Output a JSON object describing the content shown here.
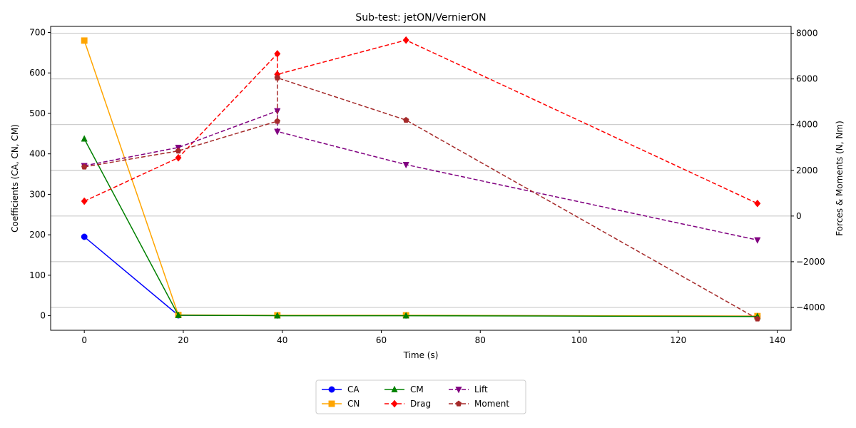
{
  "chart_data": {
    "type": "line",
    "title": "Sub-test: jetON/VernierON",
    "xlabel": "Time (s)",
    "ylabel_left": "Coefficients (CA, CN, CM)",
    "ylabel_right": "Forces & Moments (N, Nm)",
    "xlim": [
      -6.8,
      142.8
    ],
    "ylim_left": [
      -36,
      715
    ],
    "ylim_right": [
      -5000,
      8300
    ],
    "xticks": [
      0,
      20,
      40,
      60,
      80,
      100,
      120,
      140
    ],
    "yticks_left": [
      0,
      100,
      200,
      300,
      400,
      500,
      600,
      700
    ],
    "yticks_right": [
      -4000,
      -2000,
      0,
      2000,
      4000,
      6000,
      8000
    ],
    "tick_labels_right": [
      "−4000",
      "−2000",
      "0",
      "2000",
      "4000",
      "6000",
      "8000"
    ],
    "grid": "right-axis horizontal",
    "legend_location": "bottom-center",
    "series": [
      {
        "name": "CA",
        "axis": "left",
        "color": "#0000ff",
        "marker": "circle",
        "dashed": false,
        "x": [
          0,
          19,
          39,
          65,
          136
        ],
        "y": [
          195,
          1,
          0.5,
          0.5,
          -1
        ]
      },
      {
        "name": "CN",
        "axis": "left",
        "color": "#ffa500",
        "marker": "square",
        "dashed": false,
        "x": [
          0,
          19,
          39,
          65,
          136
        ],
        "y": [
          680,
          2,
          1,
          1,
          -1
        ]
      },
      {
        "name": "CM",
        "axis": "left",
        "color": "#008000",
        "marker": "triangle-up",
        "dashed": false,
        "x": [
          0,
          19,
          39,
          65,
          136
        ],
        "y": [
          437,
          1,
          0,
          0,
          -2
        ]
      },
      {
        "name": "Drag",
        "axis": "right",
        "color": "#ff0000",
        "marker": "diamond",
        "dashed": true,
        "x": [
          0,
          19,
          39,
          39,
          65,
          136
        ],
        "y": [
          650,
          2550,
          7100,
          6200,
          7700,
          550
        ]
      },
      {
        "name": "Lift",
        "axis": "right",
        "color": "#800080",
        "marker": "triangle-down",
        "dashed": true,
        "x": [
          0,
          19,
          39,
          39,
          65,
          136
        ],
        "y": [
          2200,
          3000,
          4600,
          3700,
          2250,
          -1050
        ]
      },
      {
        "name": "Moment",
        "axis": "right",
        "color": "#a52a2a",
        "marker": "pentagon",
        "dashed": true,
        "x": [
          0,
          19,
          39,
          39,
          65,
          136
        ],
        "y": [
          2150,
          2850,
          4150,
          6050,
          4200,
          -4500
        ]
      }
    ]
  }
}
